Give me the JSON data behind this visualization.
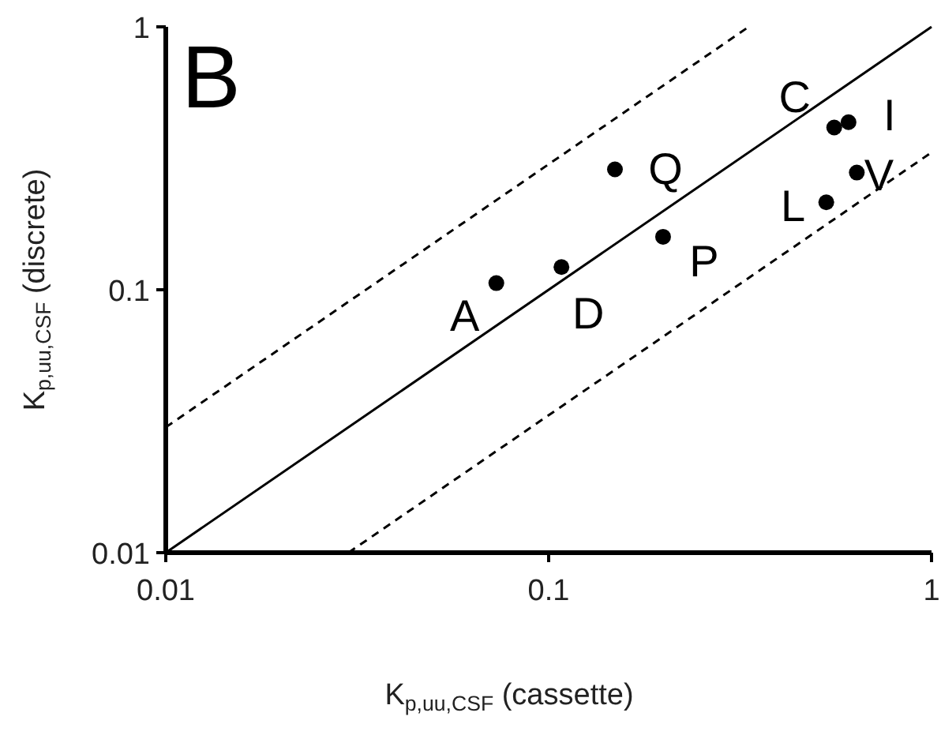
{
  "chart_data": {
    "type": "scatter",
    "title": "B",
    "xlabel": "K$_{p,uu,CSF}$ (cassette)",
    "ylabel": "K$_{p,uu,CSF}$ (discrete)",
    "log": "xy",
    "xlim": [
      0.01,
      1
    ],
    "ylim": [
      0.01,
      1
    ],
    "xticks": [
      0.01,
      0.1,
      1
    ],
    "yticks": [
      0.01,
      0.1,
      1
    ],
    "grid": false,
    "series": [
      {
        "color": "#000000",
        "marker": "circle",
        "x": [
          0.073,
          0.108,
          0.149,
          0.199,
          0.557,
          0.607,
          0.638,
          0.531
        ],
        "values": [
          0.106,
          0.122,
          0.287,
          0.159,
          0.414,
          0.434,
          0.279,
          0.215
        ]
      },
      {
        "type": "line",
        "color": "#000000",
        "marker": "none",
        "line_style": "solid",
        "x": [
          0.01,
          1
        ],
        "values": [
          0.01,
          1
        ]
      },
      {
        "type": "line",
        "color": "#000000",
        "marker": "none",
        "line_style": "dashed",
        "x": [
          0.01,
          0.333
        ],
        "values": [
          0.03,
          1
        ]
      },
      {
        "type": "line",
        "color": "#000000",
        "marker": "none",
        "line_style": "dashed",
        "x": [
          0.03,
          1
        ],
        "values": [
          0.01,
          0.333
        ]
      }
    ],
    "annotations": [
      {
        "text": "A",
        "x": 0.073,
        "y": 0.106
      },
      {
        "text": "D",
        "x": 0.108,
        "y": 0.122
      },
      {
        "text": "Q",
        "x": 0.149,
        "y": 0.287
      },
      {
        "text": "P",
        "x": 0.199,
        "y": 0.159
      },
      {
        "text": "C",
        "x": 0.557,
        "y": 0.414
      },
      {
        "text": "I",
        "x": 0.607,
        "y": 0.434
      },
      {
        "text": "V",
        "x": 0.638,
        "y": 0.279
      },
      {
        "text": "L",
        "x": 0.531,
        "y": 0.215
      }
    ]
  }
}
